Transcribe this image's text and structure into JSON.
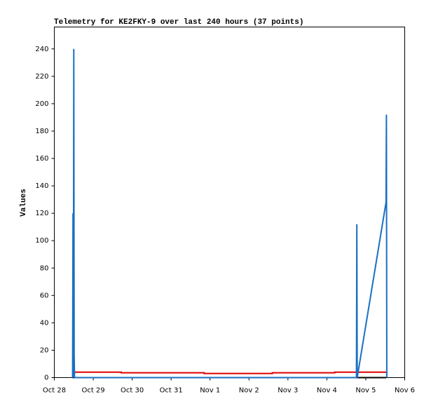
{
  "chart_data": {
    "type": "line",
    "title": "Telemetry for KE2FKY-9 over last 240 hours (37 points)",
    "y_label": "Values",
    "xlim": [
      0,
      9
    ],
    "xticks": [
      {
        "value": 0,
        "label": "Oct 28"
      },
      {
        "value": 1,
        "label": "Oct 29"
      },
      {
        "value": 2,
        "label": "Oct 30"
      },
      {
        "value": 3,
        "label": "Oct 31"
      },
      {
        "value": 4,
        "label": "Nov 1"
      },
      {
        "value": 5,
        "label": "Nov 2"
      },
      {
        "value": 6,
        "label": "Nov 3"
      },
      {
        "value": 7,
        "label": "Nov 4"
      },
      {
        "value": 8,
        "label": "Nov 5"
      },
      {
        "value": 9,
        "label": "Nov 6"
      }
    ],
    "ylim": [
      0,
      256
    ],
    "yticks": [
      0,
      20,
      40,
      60,
      80,
      100,
      120,
      140,
      160,
      180,
      200,
      220,
      240
    ],
    "grid": false,
    "series": [
      {
        "color": "#000000",
        "x": [
          0.47,
          8.53
        ],
        "values": [
          0,
          0
        ]
      },
      {
        "color": "#e00000",
        "x": [
          0.47,
          1.72,
          1.72,
          3.85,
          3.85,
          5.6,
          5.6,
          7.2,
          7.2,
          8.53
        ],
        "values": [
          4,
          4,
          3.5,
          3.5,
          3,
          3,
          3.5,
          3.5,
          4,
          4
        ]
      },
      {
        "color": "#1a6fc4",
        "x": [
          0.47,
          0.48,
          0.49,
          0.5,
          0.51,
          0.52,
          7.76,
          7.77,
          7.78,
          8.52,
          8.53,
          8.54
        ],
        "values": [
          0,
          120,
          0,
          240,
          16,
          0,
          0,
          112,
          0,
          128,
          192,
          0
        ]
      }
    ]
  }
}
